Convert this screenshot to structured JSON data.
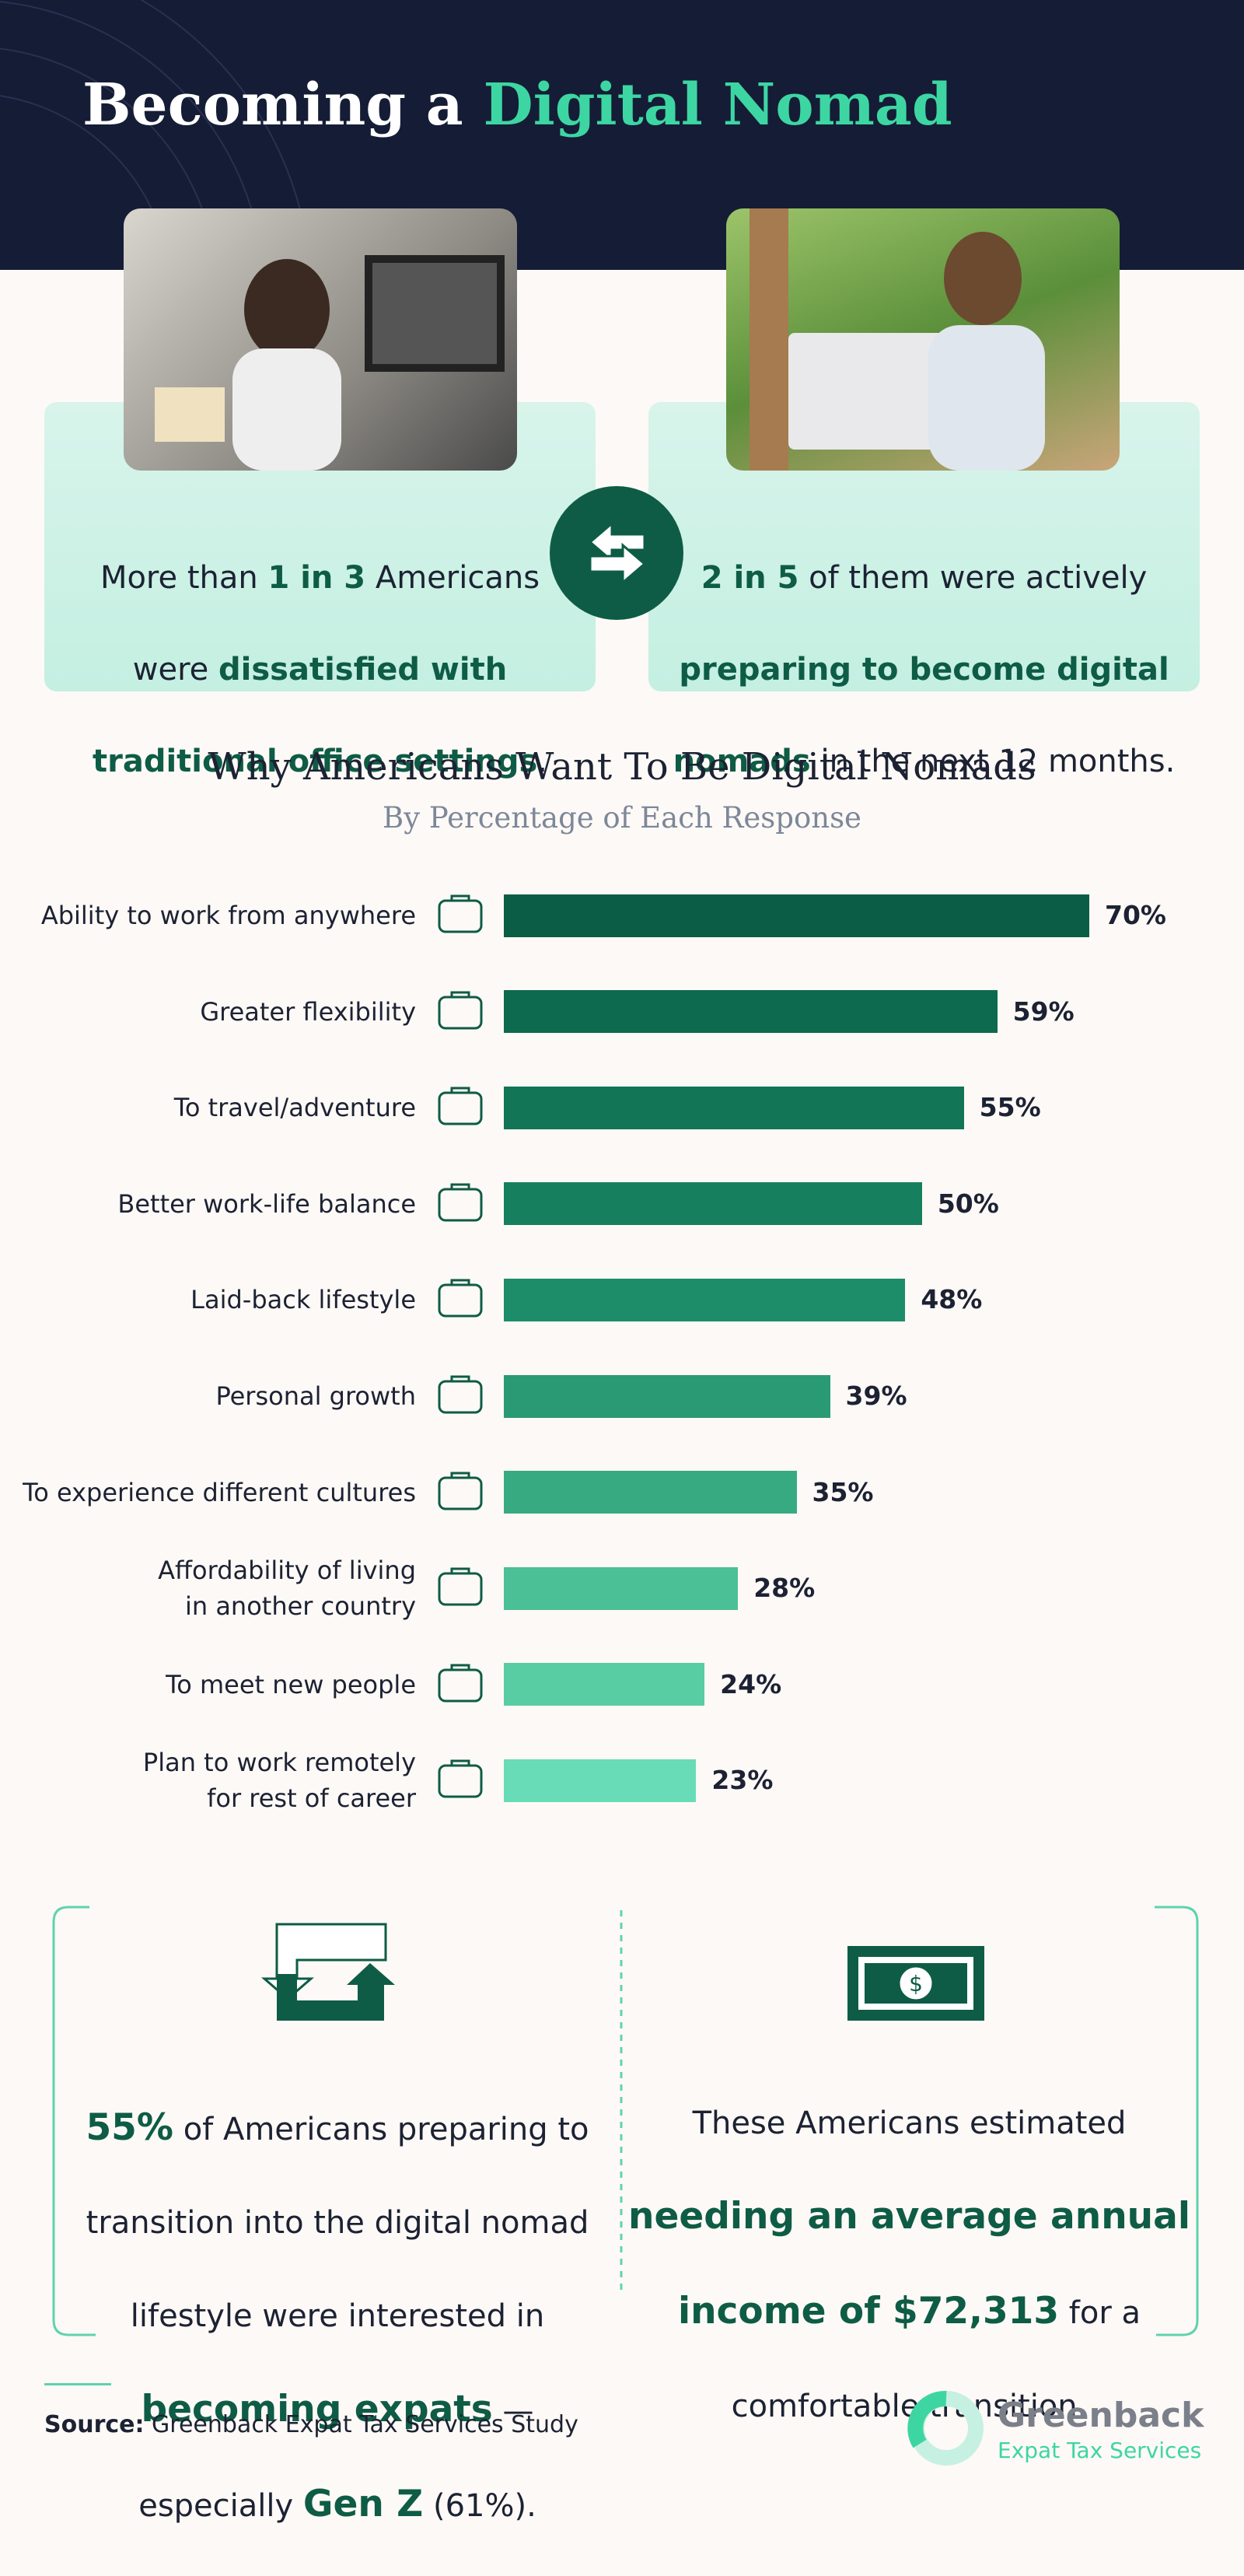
{
  "header": {
    "title": [
      "Becoming a ",
      "Digital Nomad"
    ]
  },
  "left_card": {
    "lines": [
      [
        "More than ",
        "1 in 3",
        " Americans"
      ],
      [
        "were ",
        "dissatisfied with"
      ],
      [
        "traditional office settings",
        "."
      ]
    ]
  },
  "right_card": {
    "lines": [
      [
        "2 in 5",
        " of them were actively"
      ],
      [
        "preparing to become digital"
      ],
      [
        "nomads",
        " in the next 12 months."
      ]
    ]
  },
  "chart_data": {
    "type": "bar",
    "orientation": "horizontal",
    "title": "Why Americans Want To Be Digital Nomads",
    "subtitle": "By Percentage of Each Response",
    "categories": [
      "Ability to work from anywhere",
      "Greater flexibility",
      "To travel/adventure",
      "Better work-life balance",
      "Laid-back lifestyle",
      "Personal growth",
      "To experience different cultures",
      "Affordability of living\nin another country",
      "To meet new people",
      "Plan to work remotely\nfor rest of career"
    ],
    "values": [
      70,
      59,
      55,
      50,
      48,
      39,
      35,
      28,
      24,
      23
    ],
    "value_labels": [
      "70%",
      "59%",
      "55%",
      "50%",
      "48%",
      "39%",
      "35%",
      "28%",
      "24%",
      "23%"
    ],
    "colors": [
      "#0b5e45",
      "#0d6a4e",
      "#117556",
      "#16805e",
      "#1d8c68",
      "#2a9a74",
      "#38aa82",
      "#4bbf95",
      "#58cda3",
      "#68dcb6"
    ]
  },
  "bottom_left": {
    "lines": [
      [
        "55%",
        " of Americans preparing to"
      ],
      [
        "transition into the digital nomad"
      ],
      [
        "lifestyle were interested in"
      ],
      [
        "becoming expats",
        " —"
      ],
      [
        "especially ",
        "Gen Z",
        " (61%)."
      ]
    ]
  },
  "bottom_right": {
    "lines": [
      [
        "These Americans estimated"
      ],
      [
        "needing an average annual"
      ],
      [
        "income of $72,313",
        " for a"
      ],
      [
        "comfortable transition."
      ]
    ]
  },
  "footer": {
    "source": [
      "Source:",
      " Greenback Expat Tax Services Study"
    ],
    "logo_name": "Greenback",
    "logo_tagline": "Expat Tax Services"
  }
}
